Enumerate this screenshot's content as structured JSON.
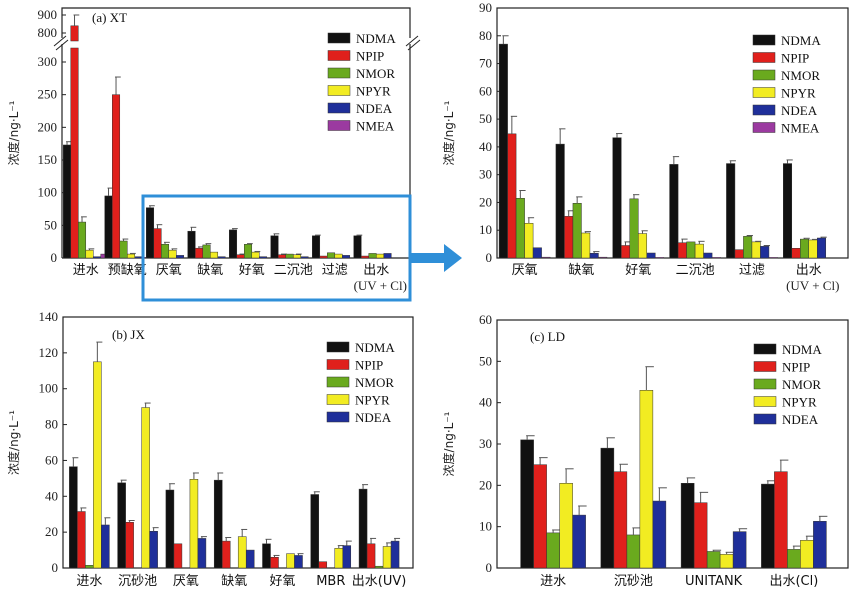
{
  "colors": {
    "NDMA": "#111111",
    "NPIP": "#e0201c",
    "NMOR": "#6aaa1e",
    "NPYR": "#f2ec22",
    "NDEA": "#1f2f9a",
    "NMEA": "#9b3aa0",
    "highlight": "#2f8fd8"
  },
  "chart_data": [
    {
      "id": "a",
      "type": "bar",
      "title": "(a) XT",
      "ylabel": "浓度/ng·L⁻¹",
      "ylim": [
        0,
        900
      ],
      "axis_break": [
        300,
        800
      ],
      "yticks": [
        "0",
        "50",
        "100",
        "150",
        "200",
        "250",
        "300",
        "800",
        "900"
      ],
      "categories": [
        "进水",
        "预缺氧",
        "厌氧",
        "缺氧",
        "好氧",
        "二沉池",
        "过滤",
        "出水"
      ],
      "category_sublabels": [
        "",
        "",
        "",
        "",
        "",
        "",
        "",
        "(UV + Cl)"
      ],
      "legend": [
        "NDMA",
        "NPIP",
        "NMOR",
        "NPYR",
        "NDEA",
        "NMEA"
      ],
      "legend_position": "top-right",
      "series": [
        {
          "name": "NDMA",
          "values": [
            173,
            95,
            77,
            41,
            43,
            34,
            34,
            34
          ],
          "errors": [
            5,
            12,
            3,
            6,
            2,
            3,
            1,
            1
          ]
        },
        {
          "name": "NPIP",
          "values": [
            840,
            250,
            45,
            15,
            5,
            5,
            3,
            3
          ],
          "errors": [
            60,
            27,
            6,
            2,
            1,
            1,
            0,
            0
          ]
        },
        {
          "name": "NMOR",
          "values": [
            55,
            26,
            21,
            20,
            21,
            6,
            8,
            7
          ],
          "errors": [
            8,
            3,
            3,
            2,
            1,
            0,
            0,
            0
          ]
        },
        {
          "name": "NPYR",
          "values": [
            12,
            6,
            12,
            9,
            9,
            5,
            6,
            6
          ],
          "errors": [
            2,
            1,
            2,
            0,
            1,
            1,
            0,
            0
          ]
        },
        {
          "name": "NDEA",
          "values": [
            2,
            2,
            4,
            2,
            2,
            2,
            4,
            7
          ],
          "errors": [
            0,
            0,
            0,
            0,
            0,
            0,
            0,
            0
          ]
        },
        {
          "name": "NMEA",
          "values": [
            6,
            1,
            0,
            0,
            0,
            0,
            0,
            0
          ],
          "errors": [
            0,
            0,
            0,
            0,
            0,
            0,
            0,
            0
          ]
        }
      ],
      "highlight_box": "categories 厌氧 to 出水 (enlarged in right panel)"
    },
    {
      "id": "a-zoom",
      "type": "bar",
      "title": "",
      "ylabel": "浓度/ng·L⁻¹",
      "ylim": [
        0,
        90
      ],
      "yticks": [
        "0",
        "10",
        "20",
        "30",
        "40",
        "50",
        "60",
        "70",
        "80",
        "90"
      ],
      "categories": [
        "厌氧",
        "缺氧",
        "好氧",
        "二沉池",
        "过滤",
        "出水"
      ],
      "category_sublabels": [
        "",
        "",
        "",
        "",
        "",
        "(UV + Cl)"
      ],
      "legend": [
        "NDMA",
        "NPIP",
        "NMOR",
        "NPYR",
        "NDEA",
        "NMEA"
      ],
      "legend_position": "top-right",
      "series": [
        {
          "name": "NDMA",
          "values": [
            77,
            41,
            43.3,
            33.7,
            34,
            34
          ],
          "errors": [
            3,
            5.5,
            1.5,
            2.8,
            1,
            1.3
          ]
        },
        {
          "name": "NPIP",
          "values": [
            44.7,
            15,
            4.5,
            5.5,
            3,
            3.5
          ],
          "errors": [
            6.3,
            2,
            1.3,
            1.3,
            0,
            0
          ]
        },
        {
          "name": "NMOR",
          "values": [
            21.5,
            19.7,
            21.3,
            5.8,
            7.8,
            6.8
          ],
          "errors": [
            2.8,
            2.3,
            1.5,
            0,
            0.3,
            0.3
          ]
        },
        {
          "name": "NPYR",
          "values": [
            12.5,
            9,
            8.8,
            5,
            5.8,
            6.5
          ],
          "errors": [
            2,
            0.5,
            1,
            1,
            0.2,
            0.2
          ]
        },
        {
          "name": "NDEA",
          "values": [
            3.7,
            1.7,
            1.8,
            1.8,
            4.2,
            7.2
          ],
          "errors": [
            0,
            0.6,
            0,
            0,
            0.3,
            0.3
          ]
        },
        {
          "name": "NMEA",
          "values": [
            0.3,
            0.3,
            0.2,
            0.2,
            0.2,
            0
          ],
          "errors": [
            0,
            0,
            0,
            0,
            0,
            0
          ]
        }
      ]
    },
    {
      "id": "b",
      "type": "bar",
      "title": "(b) JX",
      "ylabel": "浓度/ng·L⁻¹",
      "ylim": [
        0,
        140
      ],
      "yticks": [
        "0",
        "20",
        "40",
        "60",
        "80",
        "100",
        "120",
        "140"
      ],
      "categories": [
        "进水",
        "沉砂池",
        "厌氧",
        "缺氧",
        "好氧",
        "MBR",
        "出水(UV)"
      ],
      "category_sublabels": [
        "",
        "",
        "",
        "",
        "",
        "",
        ""
      ],
      "legend": [
        "NDMA",
        "NPIP",
        "NMOR",
        "NPYR",
        "NDEA"
      ],
      "legend_position": "top-right",
      "series": [
        {
          "name": "NDMA",
          "values": [
            56.5,
            47.5,
            43.5,
            49,
            13.5,
            41,
            44
          ],
          "errors": [
            5,
            1.5,
            3.5,
            4,
            2.5,
            1.5,
            2.5
          ]
        },
        {
          "name": "NPIP",
          "values": [
            31.5,
            25.5,
            13.5,
            15,
            6,
            3.5,
            13.5
          ],
          "errors": [
            2,
            1,
            0,
            2,
            1,
            0,
            3
          ]
        },
        {
          "name": "NMOR",
          "values": [
            1.5,
            0,
            0,
            0,
            0,
            0,
            1
          ],
          "errors": [
            0,
            0,
            0,
            0,
            0,
            0,
            0
          ]
        },
        {
          "name": "NPYR",
          "values": [
            115,
            89.5,
            49.5,
            17.5,
            8,
            11,
            12
          ],
          "errors": [
            11,
            2.5,
            3.5,
            4,
            0,
            1.5,
            2
          ]
        },
        {
          "name": "NDEA",
          "values": [
            24,
            20.5,
            16.5,
            10,
            7,
            12.5,
            15
          ],
          "errors": [
            4,
            2,
            1,
            0,
            1,
            2.5,
            1.5
          ]
        }
      ]
    },
    {
      "id": "c",
      "type": "bar",
      "title": "(c) LD",
      "ylabel": "浓度/ng·L⁻¹",
      "ylim": [
        0,
        60
      ],
      "yticks": [
        "0",
        "10",
        "20",
        "30",
        "40",
        "50",
        "60"
      ],
      "categories": [
        "进水",
        "沉砂池",
        "UNITANK",
        "出水(Cl)"
      ],
      "category_sublabels": [
        "",
        "",
        "",
        ""
      ],
      "legend": [
        "NDMA",
        "NPIP",
        "NMOR",
        "NPYR",
        "NDEA"
      ],
      "legend_position": "top-right",
      "series": [
        {
          "name": "NDMA",
          "values": [
            31,
            29,
            20.5,
            20.3
          ],
          "errors": [
            1,
            2.5,
            1.3,
            0.8
          ]
        },
        {
          "name": "NPIP",
          "values": [
            25,
            23.3,
            15.8,
            23.3
          ],
          "errors": [
            1.7,
            1.8,
            2.5,
            2.8
          ]
        },
        {
          "name": "NMOR",
          "values": [
            8.5,
            8,
            4,
            4.5
          ],
          "errors": [
            0.7,
            1.7,
            0.3,
            0.8
          ]
        },
        {
          "name": "NPYR",
          "values": [
            20.5,
            43,
            3.3,
            6.7
          ],
          "errors": [
            3.5,
            5.7,
            0.5,
            1
          ]
        },
        {
          "name": "NDEA",
          "values": [
            12.8,
            16.2,
            8.8,
            11.3
          ],
          "errors": [
            2.2,
            3.2,
            0.7,
            1.2
          ]
        }
      ]
    }
  ]
}
